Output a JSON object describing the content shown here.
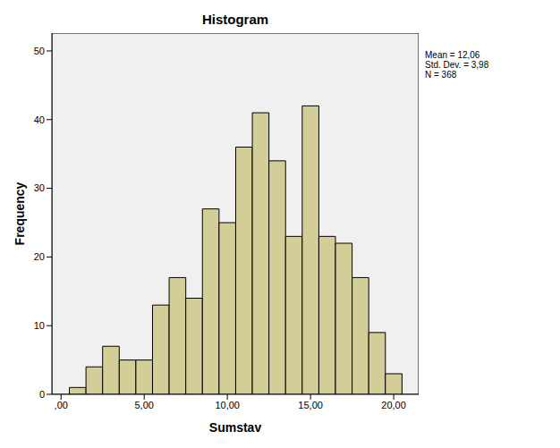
{
  "chart_data": {
    "type": "histogram",
    "title": "Histogram",
    "x_label": "Sumstav",
    "y_label": "Frequency",
    "bins": [
      0.5,
      1.5,
      2.5,
      3.5,
      4.5,
      5.5,
      6.5,
      7.5,
      8.5,
      9.5,
      10.5,
      11.5,
      12.5,
      13.5,
      14.5,
      15.5,
      16.5,
      17.5,
      18.5,
      19.5,
      20.5
    ],
    "values": [
      1,
      4,
      7,
      5,
      5,
      13,
      17,
      14,
      27,
      25,
      36,
      41,
      34,
      23,
      42,
      23,
      22,
      17,
      9,
      3
    ],
    "color": "#d3ce97",
    "xlim": [
      -0.55,
      21.5
    ],
    "xticks": [
      {
        "value": 0,
        "label": ",00"
      },
      {
        "value": 5,
        "label": "5,00"
      },
      {
        "value": 10,
        "label": "10,00"
      },
      {
        "value": 15,
        "label": "15,00"
      },
      {
        "value": 20,
        "label": "20,00"
      }
    ],
    "ylim": [
      0,
      52.6
    ],
    "yticks": [
      0,
      10,
      20,
      30,
      40,
      50
    ],
    "grid": false,
    "annotations": [
      "Mean = 12,06",
      "Std. Dev. = 3,98",
      "N = 368"
    ]
  }
}
